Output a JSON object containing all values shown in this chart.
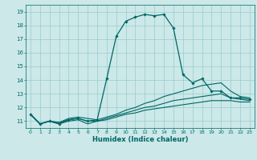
{
  "title": "",
  "xlabel": "Humidex (Indice chaleur)",
  "ylabel": "",
  "bg_color": "#cce8e8",
  "grid_color": "#99cccc",
  "line_color": "#006666",
  "xlim": [
    -0.5,
    23.5
  ],
  "ylim": [
    10.5,
    19.5
  ],
  "xticks": [
    0,
    1,
    2,
    3,
    4,
    5,
    6,
    7,
    8,
    9,
    10,
    11,
    12,
    13,
    14,
    15,
    16,
    17,
    18,
    19,
    20,
    21,
    22,
    23
  ],
  "yticks": [
    11,
    12,
    13,
    14,
    15,
    16,
    17,
    18,
    19
  ],
  "series": [
    {
      "x": [
        0,
        1,
        2,
        3,
        4,
        5,
        6,
        7,
        8,
        9,
        10,
        11,
        12,
        13,
        14,
        15,
        16,
        17,
        18,
        19,
        20,
        21,
        22,
        23
      ],
      "y": [
        11.5,
        10.8,
        11.0,
        10.8,
        11.1,
        11.2,
        11.0,
        11.1,
        14.1,
        17.2,
        18.3,
        18.6,
        18.8,
        18.7,
        18.8,
        17.8,
        14.4,
        13.8,
        14.1,
        13.2,
        13.2,
        12.7,
        12.7,
        12.6
      ],
      "marker": "D",
      "markersize": 1.8,
      "linewidth": 0.9
    },
    {
      "x": [
        0,
        1,
        2,
        3,
        4,
        5,
        6,
        7,
        8,
        9,
        10,
        11,
        12,
        13,
        14,
        15,
        16,
        17,
        18,
        19,
        20,
        21,
        22,
        23
      ],
      "y": [
        11.5,
        10.8,
        11.0,
        10.9,
        11.2,
        11.3,
        11.2,
        11.1,
        11.3,
        11.5,
        11.8,
        12.0,
        12.3,
        12.5,
        12.8,
        13.0,
        13.2,
        13.4,
        13.6,
        13.7,
        13.8,
        13.2,
        12.8,
        12.7
      ],
      "marker": null,
      "markersize": 0,
      "linewidth": 0.8
    },
    {
      "x": [
        0,
        1,
        2,
        3,
        4,
        5,
        6,
        7,
        8,
        9,
        10,
        11,
        12,
        13,
        14,
        15,
        16,
        17,
        18,
        19,
        20,
        21,
        22,
        23
      ],
      "y": [
        11.5,
        10.8,
        11.0,
        10.9,
        11.1,
        11.2,
        11.0,
        11.0,
        11.2,
        11.4,
        11.6,
        11.8,
        12.0,
        12.1,
        12.3,
        12.5,
        12.6,
        12.7,
        12.8,
        12.9,
        13.0,
        12.7,
        12.6,
        12.5
      ],
      "marker": null,
      "markersize": 0,
      "linewidth": 0.8
    },
    {
      "x": [
        0,
        1,
        2,
        3,
        4,
        5,
        6,
        7,
        8,
        9,
        10,
        11,
        12,
        13,
        14,
        15,
        16,
        17,
        18,
        19,
        20,
        21,
        22,
        23
      ],
      "y": [
        11.5,
        10.8,
        11.0,
        10.8,
        11.0,
        11.1,
        10.8,
        11.0,
        11.1,
        11.3,
        11.5,
        11.6,
        11.8,
        11.9,
        12.0,
        12.1,
        12.2,
        12.3,
        12.4,
        12.5,
        12.5,
        12.5,
        12.4,
        12.4
      ],
      "marker": null,
      "markersize": 0,
      "linewidth": 0.8
    }
  ]
}
